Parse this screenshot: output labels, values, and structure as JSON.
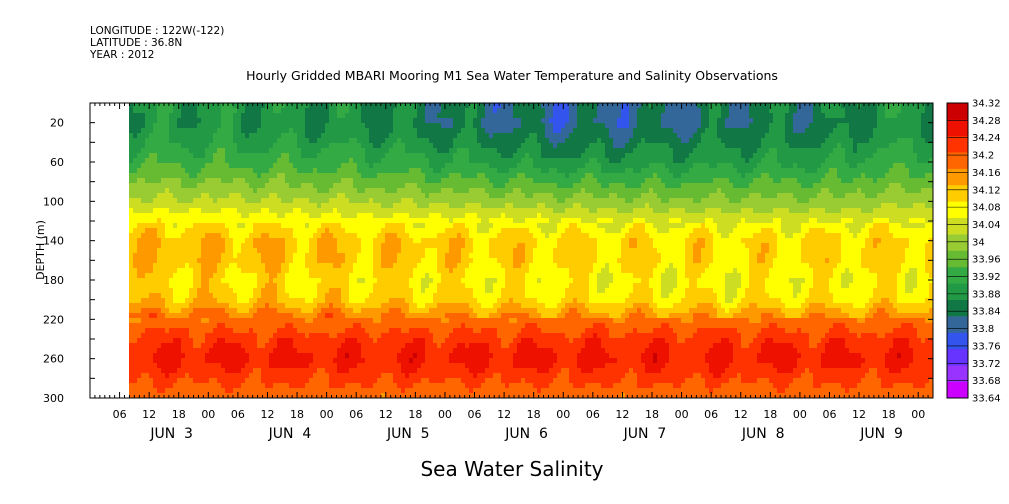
{
  "meta": {
    "longitude_label": "LONGITUDE : 122W(-122)",
    "latitude_label": "LATITUDE : 36.8N",
    "year_label": "YEAR : 2012"
  },
  "chart_data": {
    "type": "heatmap",
    "title": "Hourly Gridded MBARI Mooring M1 Sea Water Temperature and Salinity Observations",
    "subtitle": "Sea Water Salinity",
    "xlabel": "",
    "ylabel": "DEPTH (m)",
    "ylim": [
      300,
      0
    ],
    "y_ticks": [
      20,
      60,
      100,
      140,
      180,
      220,
      260,
      300
    ],
    "x_tick_labels": [
      "06",
      "12",
      "18",
      "00",
      "06",
      "12",
      "18",
      "00",
      "06",
      "12",
      "18",
      "00",
      "06",
      "12",
      "18",
      "00",
      "06",
      "12",
      "18",
      "00",
      "06",
      "12",
      "18",
      "00",
      "06",
      "12",
      "18",
      "00"
    ],
    "day_labels": [
      "JUN  3",
      "JUN  4",
      "JUN  5",
      "JUN  6",
      "JUN  7",
      "JUN  8",
      "JUN  9"
    ],
    "x_range_hours": {
      "start": "2012-06-02T00:00",
      "data_start": "2012-06-02T09:00",
      "end": "2012-06-09T03:00"
    },
    "colorbar": {
      "levels": [
        33.64,
        33.68,
        33.72,
        33.76,
        33.8,
        33.84,
        33.88,
        33.92,
        33.96,
        34,
        34.04,
        34.08,
        34.12,
        34.16,
        34.2,
        34.24,
        34.28,
        34.32
      ],
      "level_labels": [
        "33.64",
        "33.68",
        "33.72",
        "33.76",
        "33.8",
        "33.84",
        "33.88",
        "33.92",
        "33.96",
        "34",
        "34.04",
        "34.08",
        "34.12",
        "34.16",
        "34.2",
        "34.24",
        "34.28",
        "34.32"
      ],
      "colors": [
        "#cc00ff",
        "#9933ff",
        "#6633ff",
        "#3355ee",
        "#336699",
        "#117744",
        "#229944",
        "#33aa44",
        "#66bb33",
        "#99cc33",
        "#ccdd22",
        "#ffff00",
        "#ffcc00",
        "#ff9900",
        "#ff6600",
        "#ff3300",
        "#ee1100",
        "#cc0000"
      ]
    },
    "depth_profile": {
      "depth_m": [
        10,
        20,
        40,
        60,
        80,
        100,
        120,
        140,
        160,
        180,
        200,
        220,
        240,
        260,
        280,
        300
      ],
      "salinity_mean": [
        33.88,
        33.87,
        33.9,
        33.93,
        33.98,
        34.03,
        34.09,
        34.14,
        34.14,
        34.11,
        34.13,
        34.21,
        34.26,
        34.29,
        34.25,
        34.21
      ]
    }
  }
}
